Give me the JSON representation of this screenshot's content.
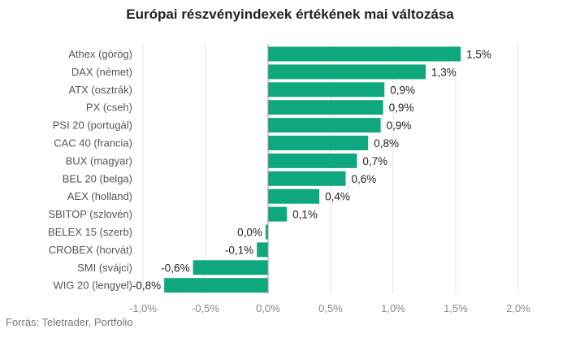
{
  "chart_data": {
    "type": "bar",
    "orientation": "horizontal",
    "title": "Európai részvényindexek értékének mai változása",
    "categories": [
      "Athex (görög)",
      "DAX (német)",
      "ATX (osztrák)",
      "PX (cseh)",
      "PSI 20 (portugál)",
      "CAC 40 (francia)",
      "BUX (magyar)",
      "BEL 20 (belga)",
      "AEX (holland)",
      "SBITOP (szlovén)",
      "BELEX 15 (szerb)",
      "CROBEX (horvát)",
      "SMI (svájci)",
      "WIG 20 (lengyel)"
    ],
    "values": [
      1.54,
      1.26,
      0.93,
      0.92,
      0.9,
      0.8,
      0.71,
      0.62,
      0.41,
      0.15,
      -0.02,
      -0.09,
      -0.6,
      -0.83
    ],
    "value_labels": [
      "1,5%",
      "1,3%",
      "0,9%",
      "0,9%",
      "0,9%",
      "0,8%",
      "0,7%",
      "0,6%",
      "0,4%",
      "0,1%",
      "0,0%",
      "-0,1%",
      "-0,6%",
      "-0,8%"
    ],
    "xlim": [
      -1.0,
      2.0
    ],
    "xticks": [
      -1.0,
      -0.5,
      0.0,
      0.5,
      1.0,
      1.5,
      2.0
    ],
    "xtick_labels": [
      "-1,0%",
      "-0,5%",
      "0,0%",
      "0,5%",
      "1,0%",
      "1,5%",
      "2,0%"
    ],
    "bar_color": "#0ea77e",
    "grid": true
  },
  "source": "Forrás: Teletrader, Portfolio"
}
